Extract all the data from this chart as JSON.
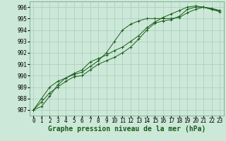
{
  "title": "Graphe pression niveau de la mer (hPa)",
  "hours": [
    0,
    1,
    2,
    3,
    4,
    5,
    6,
    7,
    8,
    9,
    10,
    11,
    12,
    13,
    14,
    15,
    16,
    17,
    18,
    19,
    20,
    21,
    22,
    23
  ],
  "series": [
    [
      987.0,
      987.7,
      988.5,
      989.0,
      989.5,
      989.9,
      990.0,
      990.5,
      991.0,
      991.3,
      991.6,
      992.0,
      992.5,
      993.2,
      994.0,
      994.6,
      994.8,
      994.9,
      995.2,
      995.8,
      996.0,
      996.0,
      995.8,
      995.7
    ],
    [
      987.0,
      988.0,
      989.0,
      989.5,
      989.8,
      990.1,
      990.3,
      990.8,
      991.3,
      992.0,
      993.0,
      994.0,
      994.5,
      994.8,
      995.0,
      995.0,
      995.0,
      995.0,
      995.1,
      995.5,
      995.8,
      996.0,
      995.8,
      995.6
    ],
    [
      987.0,
      987.3,
      988.2,
      989.2,
      989.8,
      990.2,
      990.5,
      991.2,
      991.5,
      991.8,
      992.2,
      992.5,
      993.0,
      993.5,
      994.2,
      994.7,
      995.1,
      995.4,
      995.7,
      996.0,
      996.1,
      996.0,
      995.9,
      995.7
    ]
  ],
  "line_color": "#1a5c1a",
  "bg_color": "#cce8d8",
  "grid_color": "#aaccb8",
  "ylim_min": 986.5,
  "ylim_max": 996.5,
  "yticks": [
    987,
    988,
    989,
    990,
    991,
    992,
    993,
    994,
    995,
    996
  ],
  "title_fontsize": 7,
  "tick_fontsize": 5.5,
  "marker_size": 3,
  "linewidth": 0.7
}
